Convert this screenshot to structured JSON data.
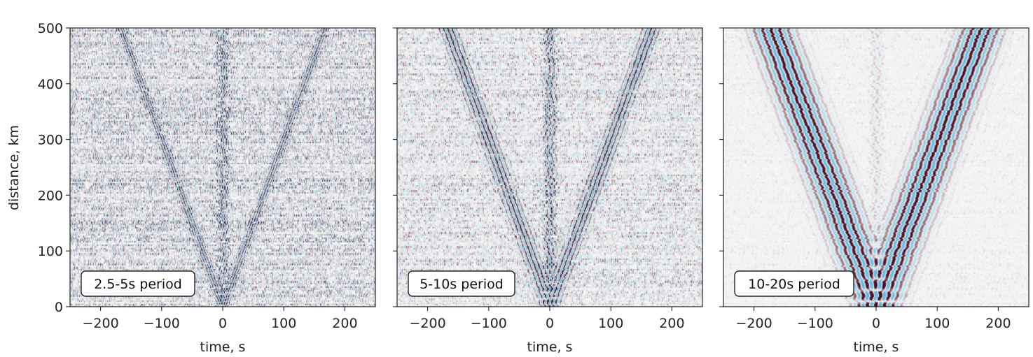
{
  "chart_data": [
    {
      "type": "heatmap",
      "subtype": "seismic-noise-cross-correlation-record-section",
      "annotation": "2.5-5s period",
      "xlabel": "time, s",
      "ylabel": "distance, km",
      "xlim": [
        -250,
        250
      ],
      "ylim": [
        0,
        500
      ],
      "x_ticks": [
        -200,
        -100,
        0,
        100,
        200
      ],
      "y_ticks": [
        0,
        100,
        200,
        300,
        400,
        500
      ],
      "x_tick_labels": [
        "−200",
        "−100",
        "0",
        "100",
        "200"
      ],
      "y_tick_labels": [
        "0",
        "100",
        "200",
        "300",
        "400",
        "500"
      ],
      "noise_level": 0.65,
      "symmetric_branch_velocity_km_s": 3.0,
      "central_arrival_time_s": 0
    },
    {
      "type": "heatmap",
      "subtype": "seismic-noise-cross-correlation-record-section",
      "annotation": "5-10s period",
      "xlabel": "time, s",
      "ylabel": "",
      "xlim": [
        -250,
        250
      ],
      "ylim": [
        0,
        500
      ],
      "x_ticks": [
        -200,
        -100,
        0,
        100,
        200
      ],
      "x_tick_labels": [
        "−200",
        "−100",
        "0",
        "100",
        "200"
      ],
      "noise_level": 0.45,
      "symmetric_branch_velocity_km_s": 3.0,
      "central_arrival_time_s": 0
    },
    {
      "type": "heatmap",
      "subtype": "seismic-noise-cross-correlation-record-section",
      "annotation": "10-20s period",
      "xlabel": "time, s",
      "ylabel": "",
      "xlim": [
        -250,
        250
      ],
      "ylim": [
        0,
        500
      ],
      "x_ticks": [
        -200,
        -100,
        0,
        100,
        200
      ],
      "x_tick_labels": [
        "−200",
        "−100",
        "0",
        "100",
        "200"
      ],
      "noise_level": 0.08,
      "symmetric_branch_velocity_km_s": 2.9,
      "central_arrival_time_s": 0
    }
  ],
  "colors": {
    "positive": "#4a1028",
    "negative": "#4fb4d8",
    "background": "#f7f5f5"
  }
}
